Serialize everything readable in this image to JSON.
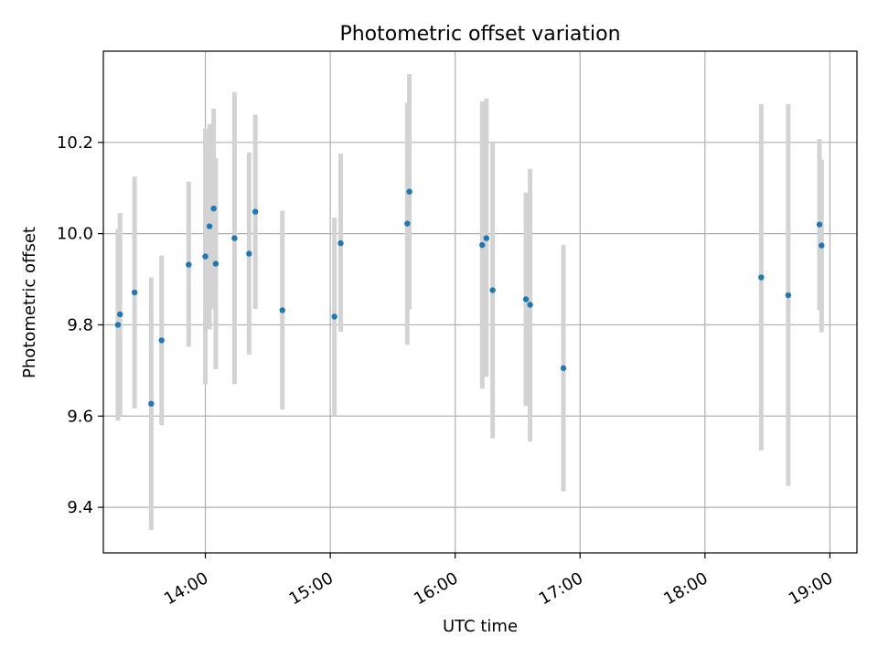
{
  "chart_data": {
    "type": "scatter",
    "title": "Photometric offset variation",
    "xlabel": "UTC time",
    "ylabel": "Photometric offset",
    "x_ticks": [
      "14:00",
      "15:00",
      "16:00",
      "17:00",
      "18:00",
      "19:00"
    ],
    "y_ticks": [
      "9.4",
      "9.6",
      "9.8",
      "10.0",
      "10.2"
    ],
    "xlim": [
      "13:11",
      "19:13"
    ],
    "ylim": [
      9.3,
      10.4
    ],
    "grid": true,
    "colors": {
      "point": "#1f77b4",
      "errorbar": "#d3d3d3",
      "grid": "#b0b0b0"
    },
    "points": [
      {
        "x": "13:18",
        "y": 9.8,
        "err_low": 9.59,
        "err_high": 10.01
      },
      {
        "x": "13:19",
        "y": 9.823,
        "err_low": 9.6,
        "err_high": 10.045
      },
      {
        "x": "13:26",
        "y": 9.871,
        "err_low": 9.617,
        "err_high": 10.125
      },
      {
        "x": "13:34",
        "y": 9.627,
        "err_low": 9.35,
        "err_high": 9.904
      },
      {
        "x": "13:39",
        "y": 9.766,
        "err_low": 9.58,
        "err_high": 9.952
      },
      {
        "x": "13:52",
        "y": 9.932,
        "err_low": 9.752,
        "err_high": 10.114
      },
      {
        "x": "14:00",
        "y": 9.95,
        "err_low": 9.67,
        "err_high": 10.23
      },
      {
        "x": "14:02",
        "y": 10.016,
        "err_low": 9.79,
        "err_high": 10.24
      },
      {
        "x": "14:04",
        "y": 10.055,
        "err_low": 9.835,
        "err_high": 10.274
      },
      {
        "x": "14:05",
        "y": 9.934,
        "err_low": 9.703,
        "err_high": 10.165
      },
      {
        "x": "14:14",
        "y": 9.99,
        "err_low": 9.67,
        "err_high": 10.31
      },
      {
        "x": "14:21",
        "y": 9.956,
        "err_low": 9.735,
        "err_high": 10.178
      },
      {
        "x": "14:24",
        "y": 10.048,
        "err_low": 9.835,
        "err_high": 10.261
      },
      {
        "x": "14:37",
        "y": 9.832,
        "err_low": 9.614,
        "err_high": 10.05
      },
      {
        "x": "15:02",
        "y": 9.818,
        "err_low": 9.6,
        "err_high": 10.035
      },
      {
        "x": "15:05",
        "y": 9.979,
        "err_low": 9.785,
        "err_high": 10.175
      },
      {
        "x": "15:37",
        "y": 10.022,
        "err_low": 9.756,
        "err_high": 10.287
      },
      {
        "x": "15:38",
        "y": 10.092,
        "err_low": 9.834,
        "err_high": 10.35
      },
      {
        "x": "16:13",
        "y": 9.975,
        "err_low": 9.66,
        "err_high": 10.29
      },
      {
        "x": "16:15",
        "y": 9.99,
        "err_low": 9.686,
        "err_high": 10.296
      },
      {
        "x": "16:18",
        "y": 9.876,
        "err_low": 9.551,
        "err_high": 10.2
      },
      {
        "x": "16:34",
        "y": 9.856,
        "err_low": 9.622,
        "err_high": 10.09
      },
      {
        "x": "16:36",
        "y": 9.844,
        "err_low": 9.544,
        "err_high": 10.142
      },
      {
        "x": "16:52",
        "y": 9.705,
        "err_low": 9.435,
        "err_high": 9.975
      },
      {
        "x": "18:27",
        "y": 9.904,
        "err_low": 9.525,
        "err_high": 10.284
      },
      {
        "x": "18:40",
        "y": 9.865,
        "err_low": 9.447,
        "err_high": 10.284
      },
      {
        "x": "18:55",
        "y": 10.02,
        "err_low": 9.832,
        "err_high": 10.208
      },
      {
        "x": "18:56",
        "y": 9.974,
        "err_low": 9.784,
        "err_high": 10.162
      }
    ]
  }
}
